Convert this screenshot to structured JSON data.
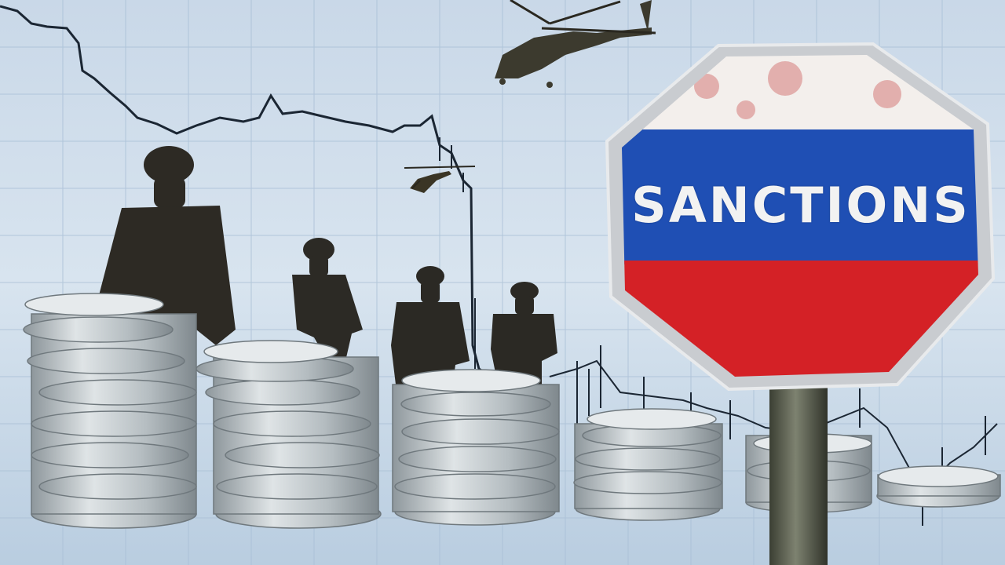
{
  "sign": {
    "text": "SANCTIONS",
    "flag_colors": [
      "#f3efec",
      "#1f4fb4",
      "#d42126"
    ],
    "border_color": "#c9ccd0"
  },
  "scene": {
    "background_color": "#c7d7e6",
    "grid_color": "#a9bfd6",
    "chart_line_color": "#1b2633",
    "coin_color": "#c3c9cc",
    "soldier_count": 4,
    "helicopter_count": 2,
    "coin_stack_count": 6
  }
}
